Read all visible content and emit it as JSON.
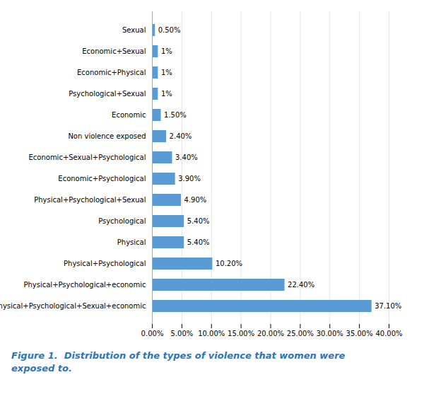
{
  "chart_data": {
    "type": "bar",
    "orientation": "horizontal",
    "title": "Figure 1.  Distribution of the types of violence that women were\nexposed to.",
    "categories": [
      "Physical+Psychological+Sexual+economic",
      "Physical+Psychological+economic",
      "Physical+Psychological",
      "Physical",
      "Psychological",
      "Physical+Psychological+Sexual",
      "Economic+Psychological",
      "Economic+Sexual+Psychological",
      "Non violence exposed",
      "Economic",
      "Psychological+Sexual",
      "Economic+Physical",
      "Economic+Sexual",
      "Sexual"
    ],
    "values": [
      37.1,
      22.4,
      10.2,
      5.4,
      5.4,
      4.9,
      3.9,
      3.4,
      2.4,
      1.5,
      1.0,
      1.0,
      1.0,
      0.5
    ],
    "value_labels": [
      "37.10%",
      "22.40%",
      "10.20%",
      "5.40%",
      "5.40%",
      "4.90%",
      "3.90%",
      "3.40%",
      "2.40%",
      "1.50%",
      "1%",
      "1%",
      "1%",
      "0.50%"
    ],
    "data_labels": true,
    "color": "#5b9bd5",
    "xlim": [
      0,
      40
    ],
    "xticks": [
      {
        "value": 0,
        "label": "0.00%"
      },
      {
        "value": 5,
        "label": "5.00%"
      },
      {
        "value": 10,
        "label": "10.00%"
      },
      {
        "value": 15,
        "label": "15.00%"
      },
      {
        "value": 20,
        "label": "20.00%"
      },
      {
        "value": 25,
        "label": "25.00%"
      },
      {
        "value": 30,
        "label": "30.00%"
      },
      {
        "value": 35,
        "label": "35.00%"
      },
      {
        "value": 40,
        "label": "40.00%"
      }
    ],
    "grid": true
  }
}
